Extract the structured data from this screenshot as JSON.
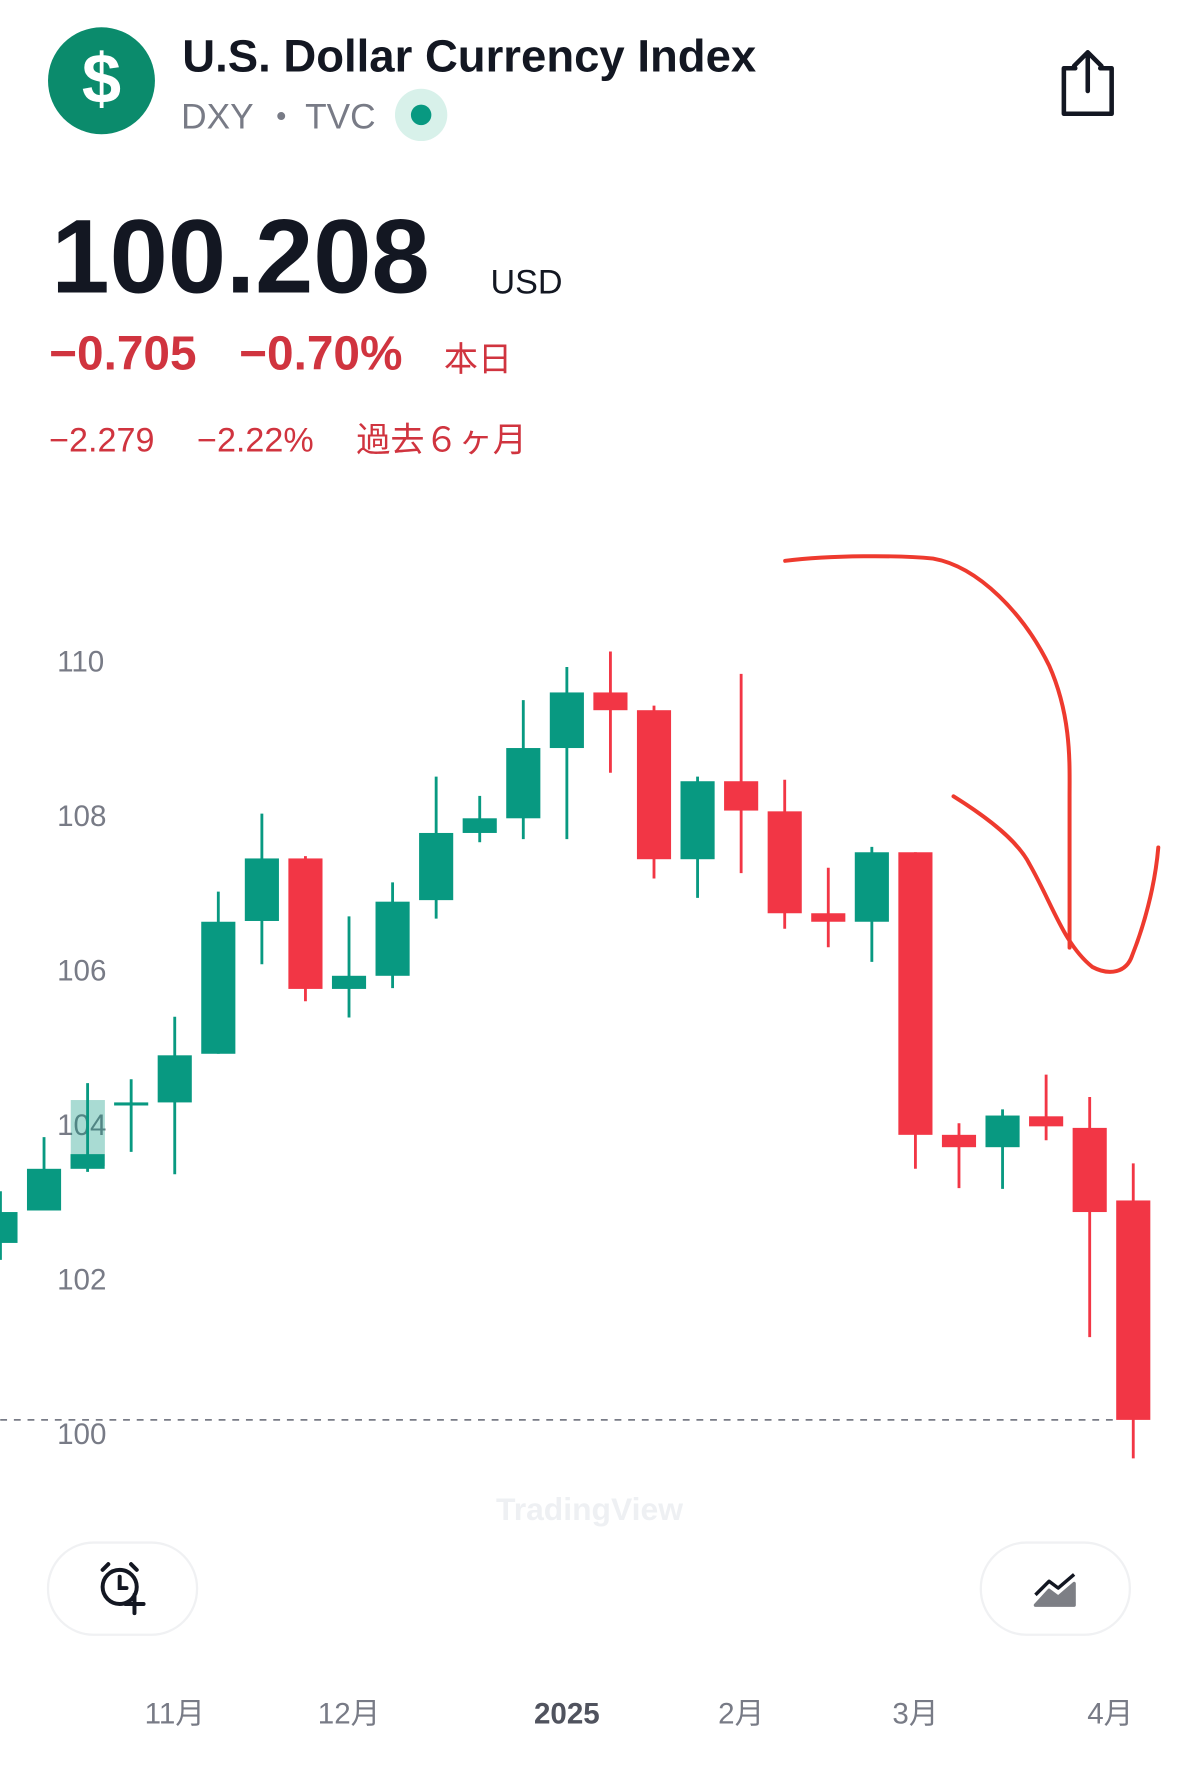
{
  "header": {
    "icon": "$",
    "title": "U.S. Dollar Currency Index",
    "symbol": "DXY",
    "exchange": "TVC"
  },
  "quote": {
    "price": "100.208",
    "currency": "USD",
    "change_day": "−0.705",
    "change_day_pct": "−0.70%",
    "day_label": "本日",
    "change_period": "−2.279",
    "change_period_pct": "−2.22%",
    "period_label": "過去６ヶ月"
  },
  "chart_data": {
    "type": "candlestick",
    "categories": [
      null,
      null,
      null,
      null,
      "11月",
      null,
      null,
      null,
      "12月",
      null,
      null,
      null,
      null,
      "2025",
      null,
      null,
      null,
      "2月",
      null,
      null,
      null,
      "3月",
      null,
      null,
      null,
      null,
      "4月"
    ],
    "open": [
      102.5,
      102.92,
      103.46,
      104.28,
      104.32,
      104.95,
      106.67,
      107.48,
      105.79,
      105.96,
      106.94,
      107.81,
      108.0,
      108.91,
      109.63,
      109.4,
      107.47,
      108.48,
      108.09,
      106.77,
      106.66,
      107.56,
      103.9,
      103.74,
      104.14,
      103.99,
      103.05
    ],
    "high": [
      103.17,
      103.87,
      104.57,
      104.62,
      105.43,
      107.05,
      108.06,
      107.51,
      106.73,
      107.17,
      108.54,
      108.29,
      109.53,
      109.96,
      110.16,
      109.46,
      108.54,
      109.87,
      108.5,
      107.36,
      107.63,
      107.56,
      104.05,
      104.23,
      104.68,
      104.39,
      103.53
    ],
    "low": [
      102.28,
      102.92,
      103.42,
      103.68,
      103.39,
      104.95,
      106.11,
      105.63,
      105.42,
      105.8,
      106.7,
      107.69,
      107.73,
      107.73,
      108.59,
      107.22,
      106.97,
      107.29,
      106.57,
      106.33,
      106.14,
      103.46,
      103.21,
      103.2,
      103.83,
      101.28,
      99.71
    ],
    "close": [
      102.9,
      103.46,
      103.65,
      104.32,
      104.93,
      106.66,
      107.48,
      105.79,
      105.96,
      106.92,
      107.81,
      108.0,
      108.91,
      109.63,
      109.4,
      107.47,
      108.48,
      108.1,
      106.77,
      106.66,
      107.56,
      103.9,
      103.74,
      104.15,
      104.01,
      102.9,
      100.208
    ],
    "up_color": "#089981",
    "down_color": "#f23645",
    "ylim": [
      99.4,
      111.6
    ],
    "yticks": [
      100,
      102,
      104,
      106,
      108,
      110
    ],
    "last_price_line": true,
    "watermark": "TradingView"
  }
}
